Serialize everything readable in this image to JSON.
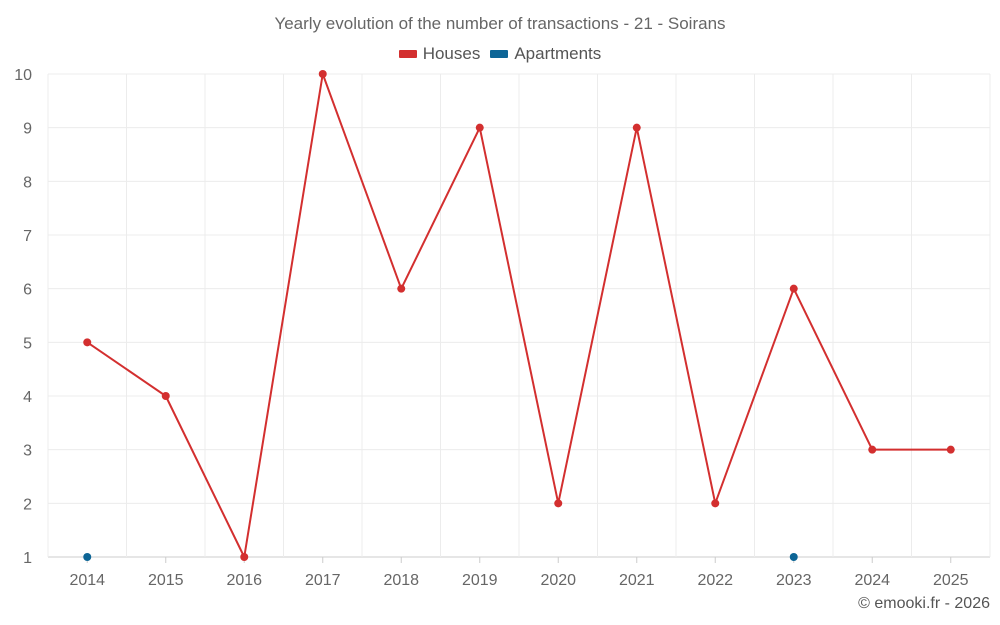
{
  "chart_data": {
    "type": "line",
    "title": "Yearly evolution of the number of transactions - 21 - Soirans",
    "categories": [
      "2014",
      "2015",
      "2016",
      "2017",
      "2018",
      "2019",
      "2020",
      "2021",
      "2022",
      "2023",
      "2024",
      "2025"
    ],
    "series": [
      {
        "name": "Houses",
        "color": "#d32f2f",
        "values": [
          5,
          4,
          1,
          10,
          6,
          9,
          2,
          9,
          2,
          6,
          3,
          3
        ]
      },
      {
        "name": "Apartments",
        "color": "#0d6596",
        "values": [
          1,
          null,
          null,
          null,
          null,
          null,
          null,
          null,
          null,
          1,
          null,
          null
        ]
      }
    ],
    "ylim": [
      1,
      10
    ],
    "yticks": [
      "1",
      "2",
      "3",
      "4",
      "5",
      "6",
      "7",
      "8",
      "9",
      "10"
    ],
    "xlabel": "",
    "ylabel": "",
    "grid": true,
    "legend_position": "top-center"
  },
  "credit": "© emooki.fr - 2026"
}
